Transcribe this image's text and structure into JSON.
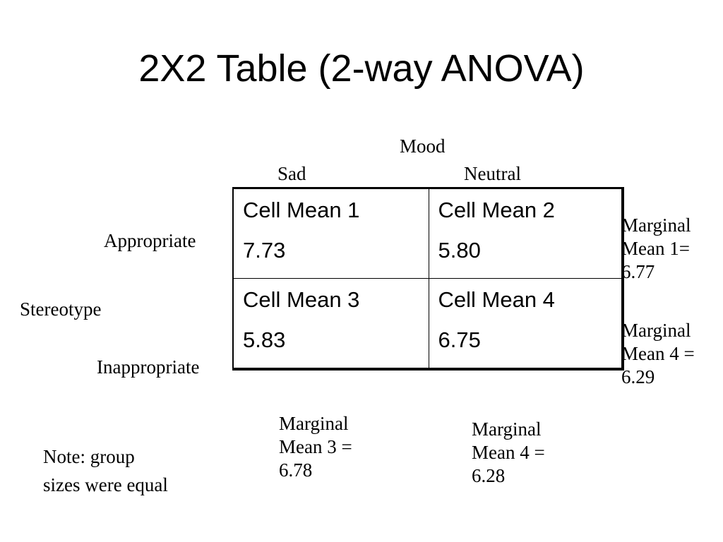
{
  "title": "2X2 Table (2-way ANOVA)",
  "factors": {
    "column_factor": "Mood",
    "column_levels": [
      "Sad",
      "Neutral"
    ],
    "row_factor": "Stereotype",
    "row_levels": [
      "Appropriate",
      "Inappropriate"
    ]
  },
  "cells": [
    [
      {
        "label": "Cell Mean 1",
        "value": "7.73"
      },
      {
        "label": "Cell Mean 2",
        "value": "5.80"
      }
    ],
    [
      {
        "label": "Cell Mean 3",
        "value": "5.83"
      },
      {
        "label": "Cell Mean 4",
        "value": "6.75"
      }
    ]
  ],
  "marginals": {
    "row_1": [
      "Marginal",
      "Mean 1=",
      "6.77"
    ],
    "row_2": [
      "Marginal",
      "Mean 4 =",
      "6.29"
    ],
    "col_1": [
      "Marginal",
      "Mean 3 =",
      "6.78"
    ],
    "col_2": [
      "Marginal",
      "Mean 4 =",
      "6.28"
    ]
  },
  "note": [
    "Note: group",
    "sizes were equal"
  ]
}
